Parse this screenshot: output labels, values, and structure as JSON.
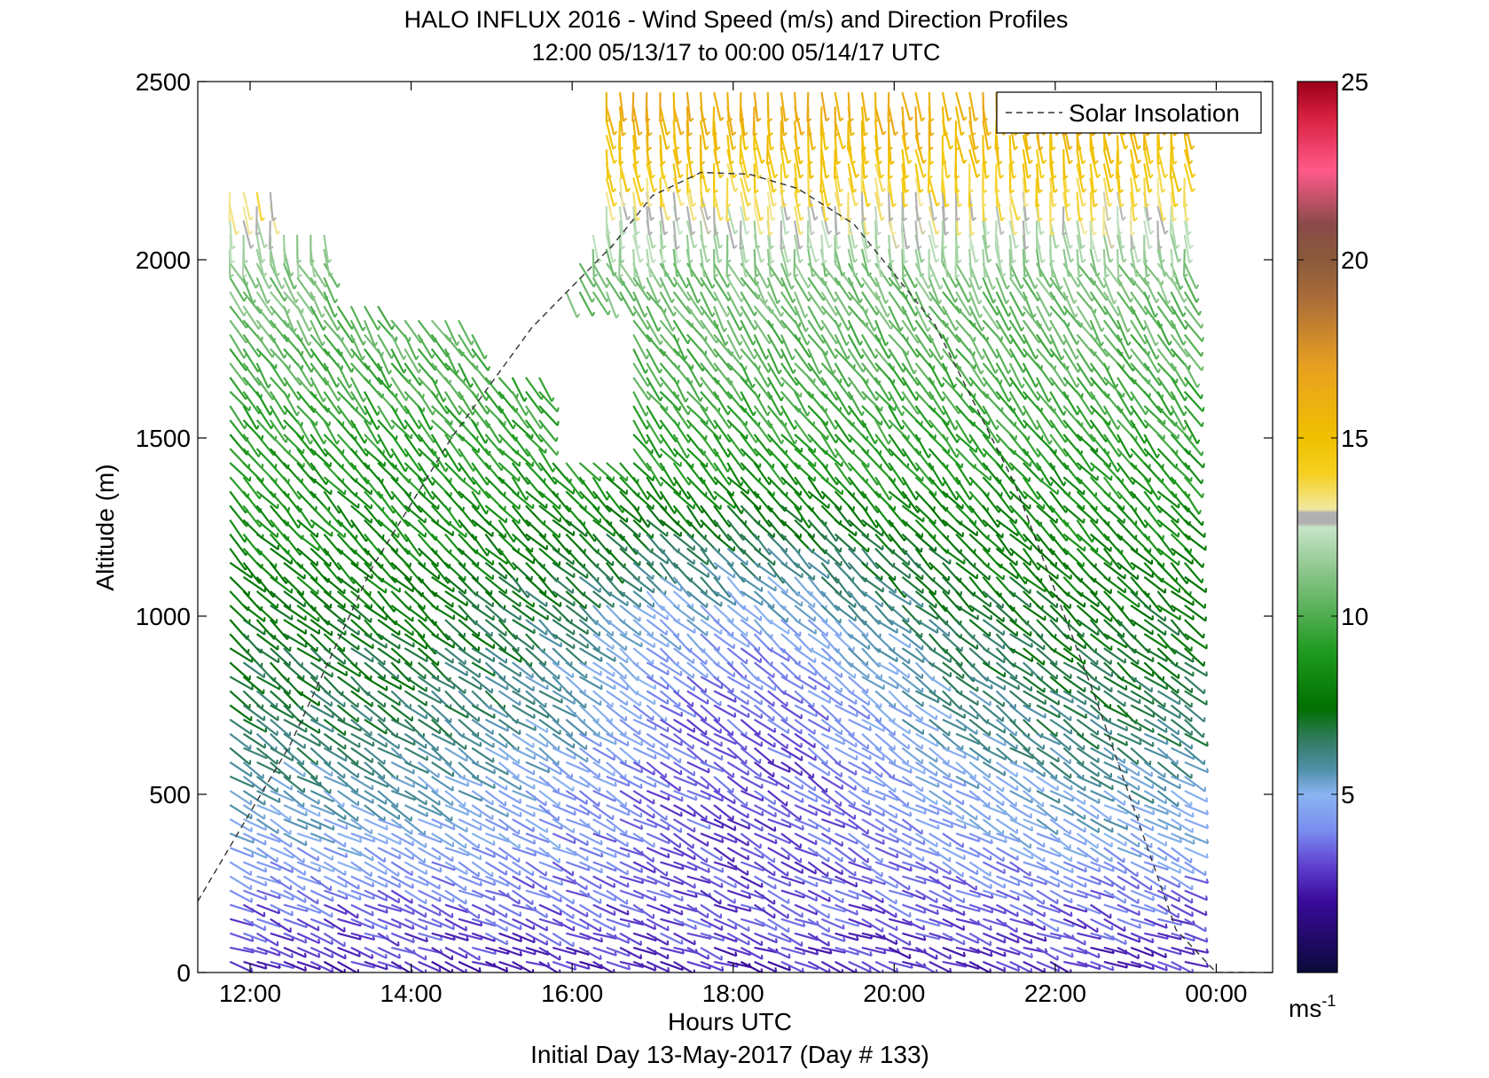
{
  "title": "HALO INFLUX 2016 - Wind Speed (m/s) and Direction Profiles",
  "subtitle": "12:00 05/13/17 to 00:00 05/14/17  UTC",
  "colorbar_label": "ms",
  "colorbar_label_exp": "-1",
  "chart_data": {
    "type": "wind-barb-profile",
    "title": "HALO INFLUX 2016 - Wind Speed (m/s) and Direction Profiles",
    "subtitle": "12:00 05/13/17 to 00:00 05/14/17  UTC",
    "xlabel": "Hours UTC",
    "xlabel2": "Initial Day 13-May-2017 (Day # 133)",
    "ylabel": "Altitude (m)",
    "xlim": [
      11.35,
      24.7
    ],
    "ylim": [
      0,
      2500
    ],
    "x_ticks": [
      12,
      14,
      16,
      18,
      20,
      22,
      24
    ],
    "x_tick_labels": [
      "12:00",
      "14:00",
      "16:00",
      "18:00",
      "20:00",
      "22:00",
      "00:00"
    ],
    "y_ticks": [
      0,
      500,
      1000,
      1500,
      2000,
      2500
    ],
    "y_tick_labels": [
      "0",
      "500",
      "1000",
      "1500",
      "2000",
      "2500"
    ],
    "legend": {
      "entries": [
        "Solar Insolation"
      ],
      "location": "top-right",
      "line_style": "dashed"
    },
    "colorbar": {
      "range": [
        0,
        25
      ],
      "ticks": [
        5,
        10,
        15,
        20,
        25
      ],
      "tick_labels": [
        "5",
        "10",
        "15",
        "20",
        "25"
      ],
      "stops": [
        {
          "v": 0,
          "c": "#0a0a3a"
        },
        {
          "v": 2,
          "c": "#3a0a9a"
        },
        {
          "v": 3,
          "c": "#6040d0"
        },
        {
          "v": 4,
          "c": "#7a8ef0"
        },
        {
          "v": 5,
          "c": "#8ab4f0"
        },
        {
          "v": 5.7,
          "c": "#4f8fa8"
        },
        {
          "v": 6.6,
          "c": "#2f7a5a"
        },
        {
          "v": 7.4,
          "c": "#007000"
        },
        {
          "v": 9,
          "c": "#1e9a1e"
        },
        {
          "v": 11,
          "c": "#7fc07f"
        },
        {
          "v": 12.5,
          "c": "#c8e4c8"
        },
        {
          "v": 12.6,
          "c": "#b0b0b0"
        },
        {
          "v": 12.9,
          "c": "#b0b0b0"
        },
        {
          "v": 13,
          "c": "#f2e8a0"
        },
        {
          "v": 14,
          "c": "#f5d020"
        },
        {
          "v": 15,
          "c": "#f0c000"
        },
        {
          "v": 17,
          "c": "#e8a020"
        },
        {
          "v": 19,
          "c": "#a86a3a"
        },
        {
          "v": 20,
          "c": "#8a5a3a"
        },
        {
          "v": 21,
          "c": "#8a4a4a"
        },
        {
          "v": 22.5,
          "c": "#ff5a8a"
        },
        {
          "v": 24,
          "c": "#d82040"
        },
        {
          "v": 25,
          "c": "#9a0018"
        }
      ]
    },
    "solar_insolation": {
      "x": [
        11.35,
        12.5,
        13.5,
        14.5,
        15.5,
        16.5,
        17.0,
        17.6,
        18.2,
        18.8,
        19.5,
        20.5,
        21.5,
        22.5,
        23.5,
        24.0,
        24.5
      ],
      "y": [
        200,
        640,
        1130,
        1500,
        1810,
        2040,
        2180,
        2245,
        2240,
        2200,
        2100,
        1820,
        1370,
        770,
        120,
        0,
        0
      ]
    },
    "barbs": {
      "time_range": [
        11.75,
        23.75
      ],
      "time_step": 0.167,
      "altitude_step": 40,
      "note": "wind barbs at ~40 m altitude spacing; color encodes speed (m/s)",
      "speed_profile": [
        {
          "alt": 0,
          "speed": 2.5
        },
        {
          "alt": 200,
          "speed": 3.5
        },
        {
          "alt": 400,
          "speed": 5.0
        },
        {
          "alt": 700,
          "speed": 6.5
        },
        {
          "alt": 1000,
          "speed": 7.5
        },
        {
          "alt": 1300,
          "speed": 8.5
        },
        {
          "alt": 1600,
          "speed": 9.5
        },
        {
          "alt": 2000,
          "speed": 11.0
        },
        {
          "alt": 2300,
          "speed": 14.5
        },
        {
          "alt": 2500,
          "speed": 16.5
        }
      ]
    }
  }
}
